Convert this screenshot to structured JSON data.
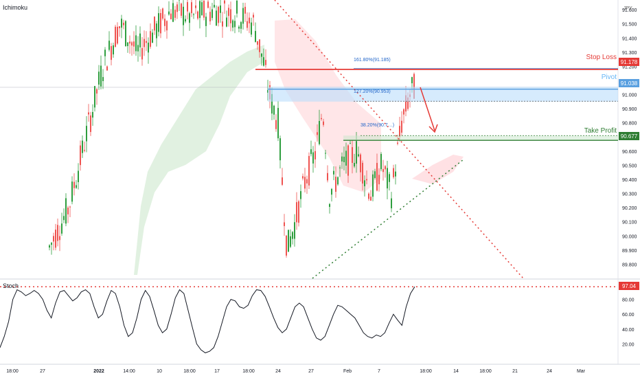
{
  "indicator_main": "Ichimoku",
  "indicator_sub": "Stoch",
  "currency": "JPY",
  "price_ticks": [
    "91.600",
    "91.500",
    "91.400",
    "91.300",
    "91.200",
    "91.100",
    "91.000",
    "90.900",
    "90.800",
    "90.700",
    "90.600",
    "90.500",
    "90.400",
    "90.300",
    "90.200",
    "90.100",
    "90.000",
    "89.900",
    "89.800"
  ],
  "stoch_ticks": [
    "80.00",
    "60.00",
    "40.00",
    "20.00"
  ],
  "time_ticks": [
    "18:00",
    "27",
    "2022",
    "14:00",
    "10",
    "18:00",
    "17",
    "18:00",
    "24",
    "27",
    "Feb",
    "7",
    "18:00",
    "14",
    "18:00",
    "21",
    "24",
    "Mar"
  ],
  "levels": {
    "stop_loss": {
      "label": "Stop Loss",
      "price": 91.178,
      "badge": "91.178",
      "color": "#e53935"
    },
    "pivot": {
      "label": "Pivot",
      "price": 91.038,
      "badge": "91.038",
      "color": "#64b5f6"
    },
    "take_profit": {
      "label": "Take Profit",
      "price": 90.677,
      "badge": "90.677",
      "color": "#2e7d32"
    }
  },
  "fib_labels": {
    "f161": "161.80%(91.185)",
    "f127": "127.20%(90.953)",
    "f38": "38.20%(90.7…)"
  },
  "stoch_level_badge": "97.04",
  "colors": {
    "up": "#26a69a",
    "up_alt": "#2e9e3e",
    "down": "#ef5350",
    "trendline_down": "#e53935",
    "trendline_up": "#2e7d32",
    "cloud_green": "#c8e6c9",
    "cloud_red": "#ffcdd2"
  },
  "chart_data": {
    "type": "candlestick",
    "symbol_currency": "JPY",
    "ylim": [
      89.7,
      91.63
    ],
    "stoch_ylim": [
      0,
      100
    ],
    "x_axis_labels": [
      "18:00",
      "27",
      "2022",
      "14:00",
      "10",
      "18:00",
      "17",
      "18:00",
      "24",
      "27",
      "Feb",
      "7",
      "18:00",
      "14",
      "18:00",
      "21",
      "24",
      "Mar"
    ],
    "horizontal_levels": [
      {
        "name": "Stop Loss",
        "value": 91.178
      },
      {
        "name": "Pivot",
        "value": 91.038
      },
      {
        "name": "Take Profit",
        "value": 90.677
      }
    ],
    "fibonacci": [
      {
        "label": "161.80%",
        "value": 91.185
      },
      {
        "label": "127.20%",
        "value": 90.953
      },
      {
        "label": "38.20%",
        "value": 90.7
      }
    ],
    "stochastic_last": 97.04
  }
}
